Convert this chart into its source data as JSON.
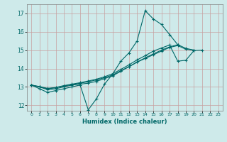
{
  "xlabel": "Humidex (Indice chaleur)",
  "ylabel": "",
  "bg_color": "#ceeaea",
  "grid_color": "#c8a0a0",
  "line_color": "#006868",
  "xmin": -0.5,
  "xmax": 23.5,
  "ymin": 11.7,
  "ymax": 17.5,
  "yticks": [
    12,
    13,
    14,
    15,
    16,
    17
  ],
  "xticks": [
    0,
    1,
    2,
    3,
    4,
    5,
    6,
    7,
    8,
    9,
    10,
    11,
    12,
    13,
    14,
    15,
    16,
    17,
    18,
    19,
    20,
    21,
    22,
    23
  ],
  "line1_y": [
    13.1,
    12.9,
    12.7,
    12.8,
    12.9,
    13.0,
    13.1,
    11.75,
    12.35,
    13.15,
    13.7,
    14.4,
    14.85,
    15.5,
    17.15,
    16.7,
    16.4,
    15.85,
    15.3,
    null,
    null,
    null,
    null,
    null
  ],
  "line2_y": [
    13.1,
    13.0,
    12.85,
    12.9,
    13.0,
    13.1,
    13.15,
    13.2,
    13.3,
    13.45,
    13.6,
    13.85,
    14.1,
    14.35,
    14.55,
    14.75,
    14.95,
    15.15,
    15.25,
    15.05,
    15.0,
    null,
    null,
    null
  ],
  "line3_y": [
    13.1,
    13.0,
    12.9,
    12.95,
    13.05,
    13.12,
    13.2,
    13.28,
    13.38,
    13.5,
    13.65,
    13.88,
    14.1,
    14.35,
    14.58,
    14.8,
    15.0,
    15.18,
    15.3,
    15.1,
    15.0,
    null,
    null,
    null
  ],
  "line4_y": [
    13.1,
    13.02,
    12.92,
    12.97,
    13.07,
    13.15,
    13.23,
    13.32,
    13.42,
    13.55,
    13.72,
    13.95,
    14.2,
    14.47,
    14.7,
    14.95,
    15.12,
    15.28,
    14.4,
    14.45,
    14.98,
    15.0,
    null,
    null
  ]
}
